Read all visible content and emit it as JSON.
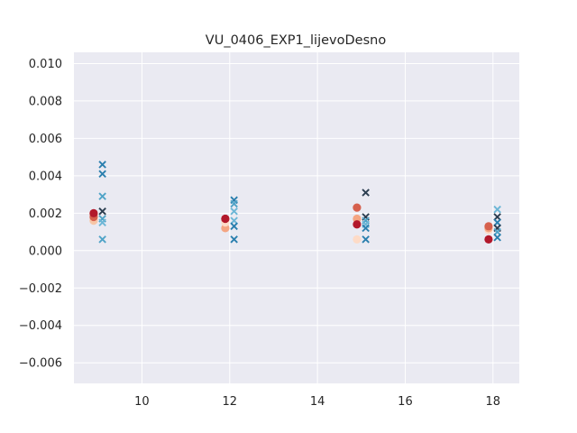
{
  "chart_data": {
    "type": "scatter",
    "title": "VU_0406_EXP1_lijevoDesno",
    "xlabel": "",
    "ylabel": "",
    "xlim": [
      8.45,
      18.6
    ],
    "ylim": [
      -0.0071,
      0.0106
    ],
    "x_ticks": [
      10,
      12,
      14,
      16,
      18
    ],
    "x_tick_labels": [
      "10",
      "12",
      "14",
      "16",
      "18"
    ],
    "y_ticks": [
      -0.006,
      -0.004,
      -0.002,
      0.0,
      0.002,
      0.004,
      0.006,
      0.008,
      0.01
    ],
    "y_tick_labels": [
      "−0.006",
      "−0.004",
      "−0.002",
      "0.000",
      "0.002",
      "0.004",
      "0.006",
      "0.008",
      "0.010"
    ],
    "grid": true,
    "background": "#eaeaf2",
    "grid_color": "#ffffff",
    "series": [
      {
        "marker": "circle",
        "points": [
          {
            "x": 8.9,
            "y": 0.0019,
            "color": "#f4a582"
          },
          {
            "x": 8.9,
            "y": 0.0016,
            "color": "#f7c6a6"
          },
          {
            "x": 8.9,
            "y": 0.0018,
            "color": "#d6604d"
          },
          {
            "x": 8.9,
            "y": 0.002,
            "color": "#b2182b"
          },
          {
            "x": 11.9,
            "y": 0.0012,
            "color": "#f4a582"
          },
          {
            "x": 11.9,
            "y": 0.0015,
            "color": "#fddbc7"
          },
          {
            "x": 11.9,
            "y": 0.0017,
            "color": "#d6604d"
          },
          {
            "x": 11.9,
            "y": 0.0017,
            "color": "#b2182b"
          },
          {
            "x": 14.9,
            "y": 0.0006,
            "color": "#fddbc7"
          },
          {
            "x": 14.9,
            "y": 0.0017,
            "color": "#f4a582"
          },
          {
            "x": 14.9,
            "y": 0.0023,
            "color": "#d6604d"
          },
          {
            "x": 14.9,
            "y": 0.0014,
            "color": "#b2182b"
          },
          {
            "x": 17.9,
            "y": 0.0011,
            "color": "#fddbc7"
          },
          {
            "x": 17.9,
            "y": 0.0012,
            "color": "#f4a582"
          },
          {
            "x": 17.9,
            "y": 0.0013,
            "color": "#d6604d"
          },
          {
            "x": 17.9,
            "y": 0.0006,
            "color": "#b2182b"
          }
        ]
      },
      {
        "marker": "x",
        "points": [
          {
            "x": 9.1,
            "y": 0.0046,
            "color": "#2a7fae"
          },
          {
            "x": 9.1,
            "y": 0.0041,
            "color": "#2a7fae"
          },
          {
            "x": 9.1,
            "y": 0.0029,
            "color": "#4fa3c7"
          },
          {
            "x": 9.1,
            "y": 0.0021,
            "color": "#2c3e50"
          },
          {
            "x": 9.1,
            "y": 0.0017,
            "color": "#4fa3c7"
          },
          {
            "x": 9.1,
            "y": 0.0015,
            "color": "#6cb6d6"
          },
          {
            "x": 9.1,
            "y": 0.0006,
            "color": "#4fa3c7"
          },
          {
            "x": 12.1,
            "y": 0.0027,
            "color": "#2a7fae"
          },
          {
            "x": 12.1,
            "y": 0.0025,
            "color": "#4fa3c7"
          },
          {
            "x": 12.1,
            "y": 0.0021,
            "color": "#6cb6d6"
          },
          {
            "x": 12.1,
            "y": 0.0016,
            "color": "#6cb6d6"
          },
          {
            "x": 12.1,
            "y": 0.0013,
            "color": "#2a7fae"
          },
          {
            "x": 12.1,
            "y": 0.0006,
            "color": "#2a7fae"
          },
          {
            "x": 15.1,
            "y": 0.0031,
            "color": "#2c3e50"
          },
          {
            "x": 15.1,
            "y": 0.0018,
            "color": "#2c3e50"
          },
          {
            "x": 15.1,
            "y": 0.0016,
            "color": "#4fa3c7"
          },
          {
            "x": 15.1,
            "y": 0.0014,
            "color": "#6cb6d6"
          },
          {
            "x": 15.1,
            "y": 0.0012,
            "color": "#2a7fae"
          },
          {
            "x": 15.1,
            "y": 0.0006,
            "color": "#2a7fae"
          },
          {
            "x": 18.1,
            "y": 0.0022,
            "color": "#6cb6d6"
          },
          {
            "x": 18.1,
            "y": 0.0018,
            "color": "#2c3e50"
          },
          {
            "x": 18.1,
            "y": 0.0015,
            "color": "#2a7fae"
          },
          {
            "x": 18.1,
            "y": 0.0012,
            "color": "#2c3e50"
          },
          {
            "x": 18.1,
            "y": 0.001,
            "color": "#4fa3c7"
          },
          {
            "x": 18.1,
            "y": 0.0007,
            "color": "#2a7fae"
          }
        ]
      }
    ]
  }
}
